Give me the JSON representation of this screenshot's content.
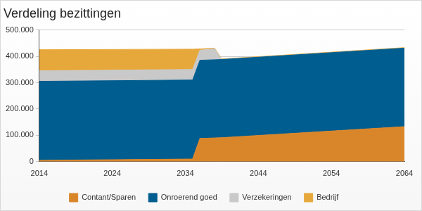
{
  "chart_data": {
    "type": "area",
    "title": "Verdeling bezittingen",
    "x": [
      2014,
      2035,
      2036,
      2038,
      2039,
      2064
    ],
    "series": [
      {
        "name": "Contant/Sparen",
        "color": "#d9862a",
        "values": [
          5000,
          10000,
          88000,
          90000,
          91000,
          133000
        ]
      },
      {
        "name": "Onroerend goed",
        "color": "#005d8f",
        "values": [
          300000,
          300000,
          297000,
          297000,
          297000,
          298000
        ]
      },
      {
        "name": "Verzekeringen",
        "color": "#c9c9c9",
        "values": [
          40000,
          40000,
          38000,
          42000,
          0,
          0
        ]
      },
      {
        "name": "Bedrijf",
        "color": "#e7a83b",
        "values": [
          80000,
          77000,
          5000,
          2000,
          2000,
          2000
        ]
      }
    ],
    "xlim": [
      2014,
      2064
    ],
    "xticks": [
      2014,
      2024,
      2034,
      2044,
      2054,
      2064
    ],
    "ylim": [
      0,
      500000
    ],
    "yticks": [
      0,
      {
        "value": 100000,
        "label": "100.000"
      },
      {
        "value": 200000,
        "label": "200.000"
      },
      {
        "value": 300000,
        "label": "300.000"
      },
      {
        "value": 400000,
        "label": "400.000"
      },
      {
        "value": 500000,
        "label": "500.000"
      }
    ],
    "stacked": true,
    "grid": true,
    "legend": "bottom"
  }
}
